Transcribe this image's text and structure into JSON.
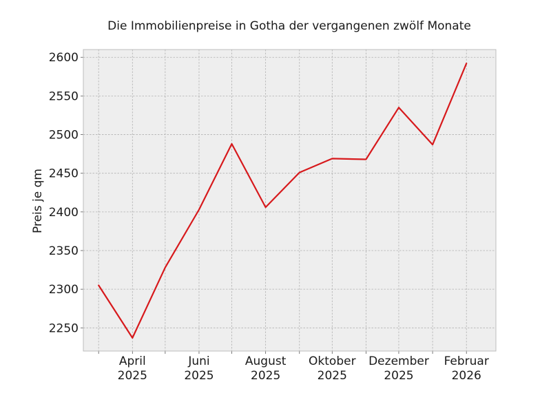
{
  "chart_data": {
    "type": "line",
    "title": "Die Immobilienpreise in Gotha der vergangenen zwölf Monate",
    "xlabel": "",
    "ylabel": "Preis je qm",
    "x": [
      "2025-03",
      "2025-04",
      "2025-05",
      "2025-06",
      "2025-07",
      "2025-08",
      "2025-09",
      "2025-10",
      "2025-11",
      "2025-12",
      "2026-01",
      "2026-02"
    ],
    "series": [
      {
        "values": [
          2305,
          2237,
          2328,
          2403,
          2488,
          2406,
          2451,
          2469,
          2468,
          2535,
          2487,
          2592
        ],
        "color": "#d7191c"
      }
    ],
    "x_tick_labels": [
      {
        "x": "2025-04",
        "line1": "April",
        "line2": "2025"
      },
      {
        "x": "2025-06",
        "line1": "Juni",
        "line2": "2025"
      },
      {
        "x": "2025-08",
        "line1": "August",
        "line2": "2025"
      },
      {
        "x": "2025-10",
        "line1": "Oktober",
        "line2": "2025"
      },
      {
        "x": "2025-12",
        "line1": "Dezember",
        "line2": "2025"
      },
      {
        "x": "2026-02",
        "line1": "Februar",
        "line2": "2026"
      }
    ],
    "y_ticks": [
      2250,
      2300,
      2350,
      2400,
      2450,
      2500,
      2550,
      2600
    ],
    "ylim": [
      2220,
      2610
    ],
    "xlim": [
      "2025-02-15",
      "2026-02-28"
    ],
    "grid": true,
    "background": "#eeeeee",
    "grid_color": "#b0b0b0",
    "legend": "none"
  }
}
